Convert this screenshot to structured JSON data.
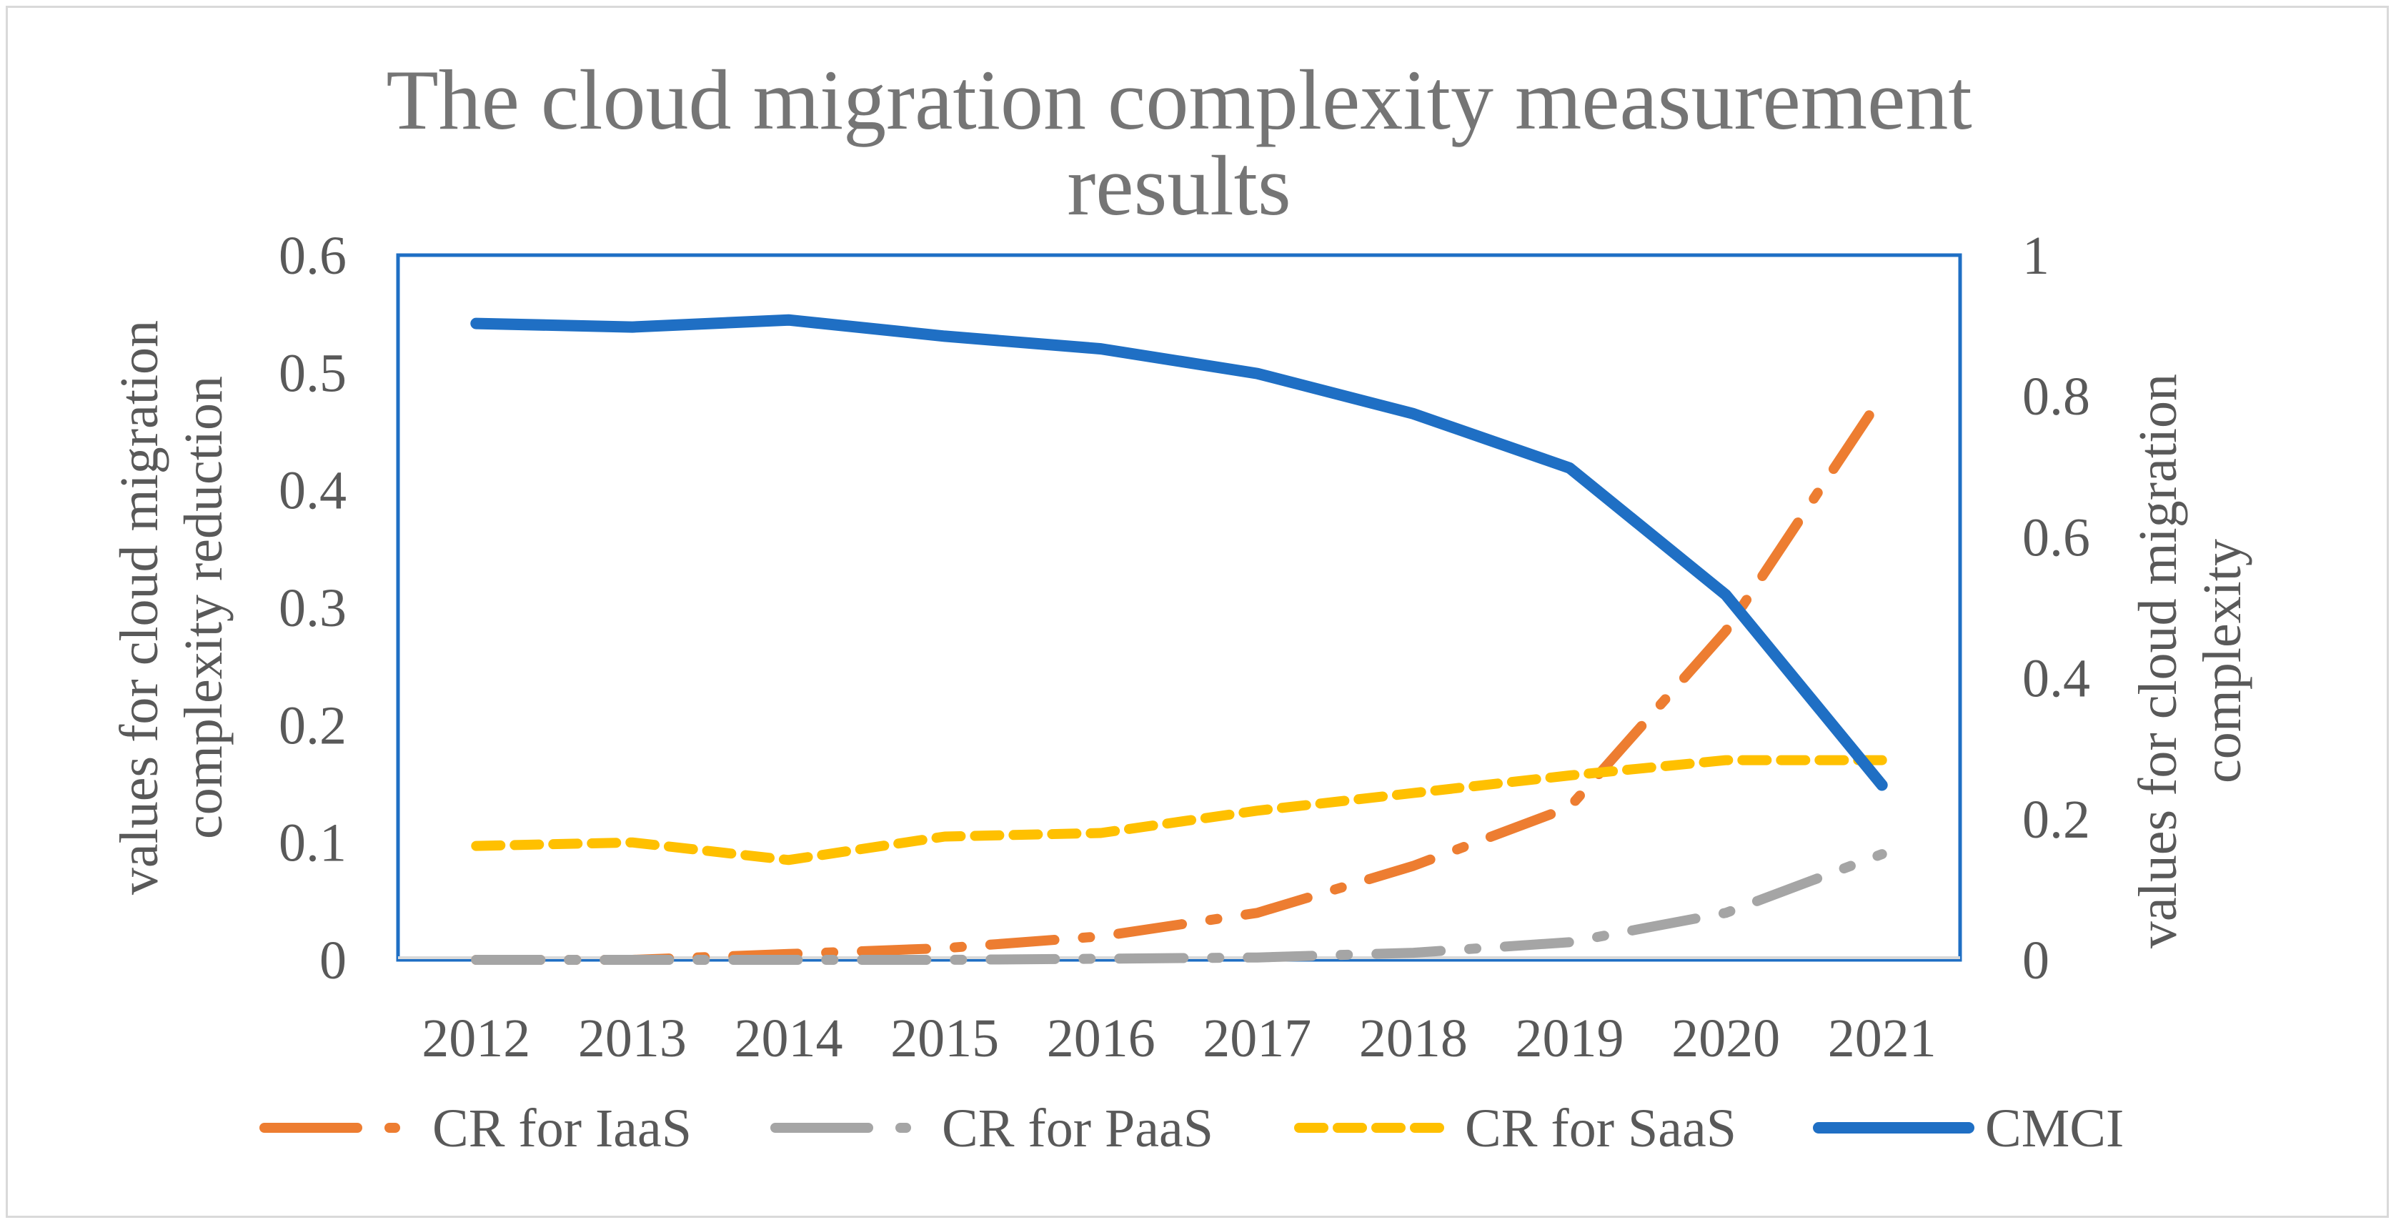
{
  "chart_data": {
    "type": "line",
    "title": "The cloud migration complexity measurement results",
    "title_lines": [
      "The cloud migration complexity measurement",
      "results"
    ],
    "categories": [
      "2012",
      "2013",
      "2014",
      "2015",
      "2016",
      "2017",
      "2018",
      "2019",
      "2020",
      "2021"
    ],
    "y_left": {
      "label_lines": [
        "values for cloud migration",
        "complexity reduction"
      ],
      "ylim": [
        0,
        0.6
      ],
      "ticks": [
        "0",
        "0.1",
        "0.2",
        "0.3",
        "0.4",
        "0.5",
        "0.6"
      ]
    },
    "y_right": {
      "label_lines": [
        "values for cloud migration",
        "complexity"
      ],
      "ylim": [
        0,
        1
      ],
      "ticks": [
        "0",
        "0.2",
        "0.4",
        "0.6",
        "0.8",
        "1"
      ]
    },
    "series": [
      {
        "name": "CR for IaaS",
        "axis": "left",
        "color": "#ED7D31",
        "dash": "long-dash-dot",
        "values": [
          0.0,
          0.0,
          0.005,
          0.01,
          0.02,
          0.04,
          0.08,
          0.13,
          0.28,
          0.48
        ]
      },
      {
        "name": "CR for PaaS",
        "axis": "left",
        "color": "#A5A5A5",
        "dash": "long-dash-dot",
        "values": [
          0.0,
          0.0,
          0.0,
          0.0,
          0.001,
          0.002,
          0.006,
          0.015,
          0.04,
          0.09
        ]
      },
      {
        "name": "CR for SaaS",
        "axis": "left",
        "color": "#FFC000",
        "dash": "dash",
        "values": [
          0.097,
          0.1,
          0.085,
          0.105,
          0.108,
          0.127,
          0.142,
          0.157,
          0.17,
          0.17
        ]
      },
      {
        "name": "CMCI",
        "axis": "right",
        "color": "#1F6FC4",
        "dash": "solid",
        "values": [
          0.903,
          0.898,
          0.908,
          0.885,
          0.867,
          0.832,
          0.775,
          0.698,
          0.518,
          0.248
        ]
      }
    ],
    "legend_position": "bottom",
    "grid": false
  }
}
